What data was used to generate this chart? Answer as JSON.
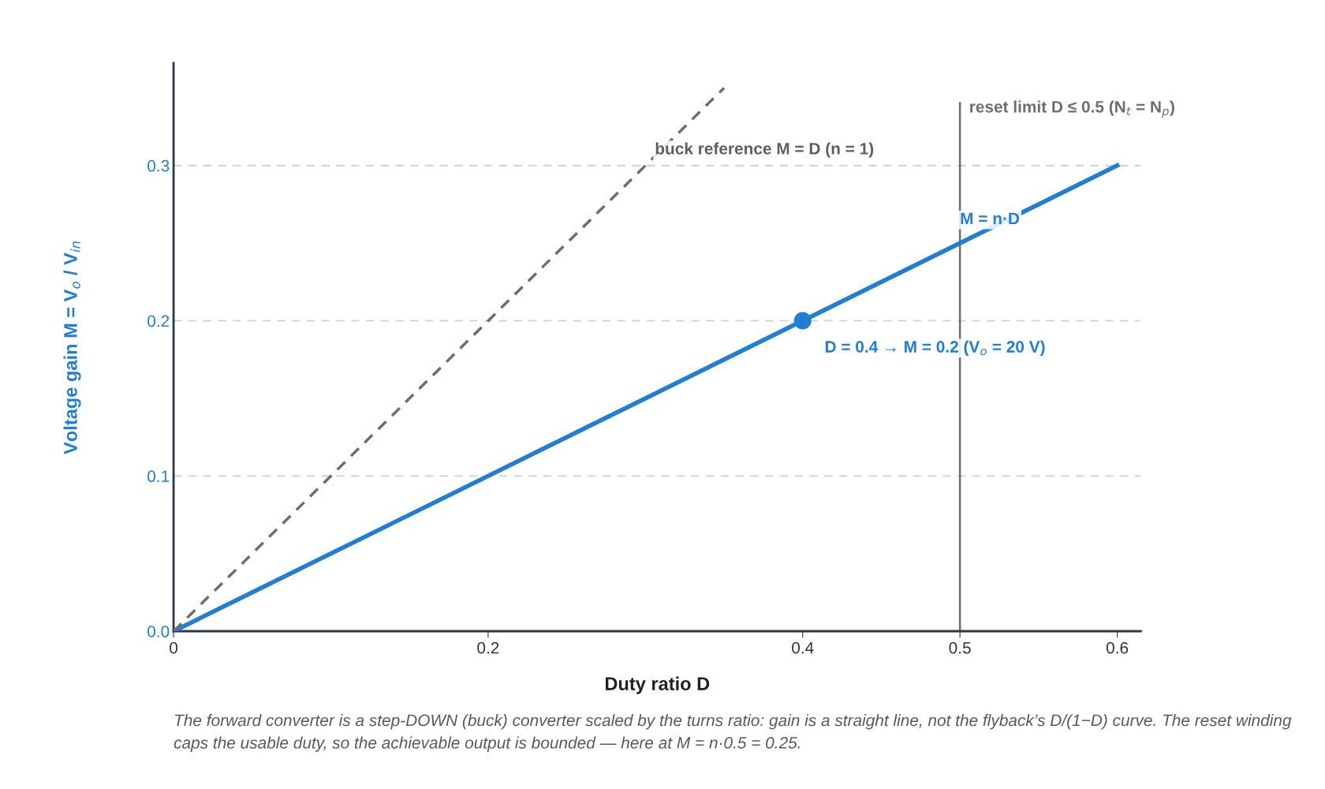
{
  "chart_data": {
    "type": "line",
    "xlabel": "Duty ratio D",
    "ylabel": "Voltage gain M = V$_{o}$ / V$_{in}$",
    "series": [
      {
        "x": [
          0,
          0.6
        ],
        "values": [
          0,
          0.3
        ],
        "color": "#1f7ed6",
        "line_style": "solid"
      },
      {
        "x": [
          0,
          0.35
        ],
        "values": [
          0,
          0.35
        ],
        "color": "#6b6e75",
        "line_style": "dashed"
      },
      {
        "type": "scatter",
        "x": [
          0.4
        ],
        "values": [
          0.2
        ],
        "color": "#1f7ed6",
        "marker": "circle"
      }
    ],
    "xlim": [
      0,
      0.615
    ],
    "ylim": [
      0,
      0.366
    ],
    "xticks": [
      0,
      0.2,
      0.4,
      0.5,
      0.6
    ],
    "yticks": [
      {
        "value": 0,
        "label": "0.0"
      },
      0.1,
      0.2,
      0.3
    ],
    "grid": "y",
    "ref_lines": [
      {
        "axis": "x",
        "value": 0.5,
        "label": "reset limit D ≤ 0.5 (N$_{t}$ = N$_{p}$)",
        "color": "#6b6e75"
      }
    ],
    "annotations": [
      {
        "text": "buck reference M = D (n = 1)",
        "x": 0.306,
        "y": 0.31
      },
      {
        "text": "M = n·D",
        "x": 0.5,
        "y": 0.265
      },
      {
        "text": "D = 0.4 → M = 0.2 (V$_{o}$ = 20 V)",
        "x": 0.4,
        "y": 0.2
      },
      "The forward converter is a step-DOWN (buck) converter scaled by the turns ratio: gain is a straight line, not the flyback’s D/(1−D) curve. The reset winding caps the usable duty, so the achievable output is bounded — here at M = n·0.5 = 0.25."
    ]
  }
}
